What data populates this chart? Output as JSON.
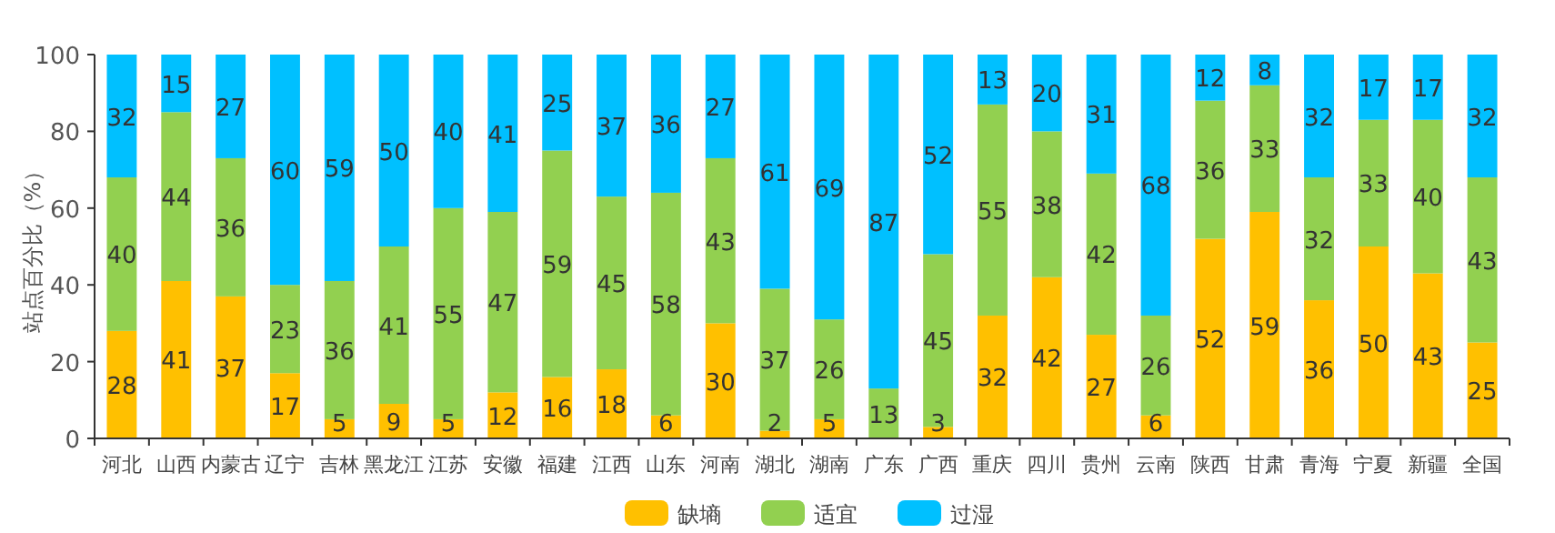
{
  "chart_data": {
    "type": "bar",
    "stacked": true,
    "ylabel": "站点百分比（%）",
    "categories": [
      "河北",
      "山西",
      "内蒙古",
      "辽宁",
      "吉林",
      "黑龙江",
      "江苏",
      "安徽",
      "福建",
      "江西",
      "山东",
      "河南",
      "湖北",
      "湖南",
      "广东",
      "广西",
      "重庆",
      "四川",
      "贵州",
      "云南",
      "陕西",
      "甘肃",
      "青海",
      "宁夏",
      "新疆",
      "全国"
    ],
    "series": [
      {
        "name": "缺墒",
        "color": "#ffc000",
        "values": [
          28,
          41,
          37,
          17,
          5,
          9,
          5,
          12,
          16,
          18,
          6,
          30,
          2,
          5,
          0,
          3,
          32,
          42,
          27,
          6,
          52,
          59,
          36,
          50,
          43,
          25
        ],
        "value_labels": [
          "28",
          "41",
          "37",
          "17",
          "5",
          "9",
          "5",
          "12",
          "16",
          "18",
          "6",
          "30",
          "2",
          "5",
          null,
          "3",
          "32",
          "42",
          "27",
          "6",
          "52",
          "59",
          "36",
          "50",
          "43",
          "25"
        ]
      },
      {
        "name": "适宜",
        "color": "#92d050",
        "values": [
          40,
          44,
          36,
          23,
          36,
          41,
          55,
          47,
          59,
          45,
          58,
          43,
          37,
          26,
          13,
          45,
          55,
          38,
          42,
          26,
          36,
          33,
          32,
          33,
          40,
          43
        ]
      },
      {
        "name": "过湿",
        "color": "#00c0ff",
        "values": [
          32,
          15,
          27,
          60,
          59,
          50,
          40,
          41,
          25,
          37,
          36,
          27,
          61,
          69,
          87,
          52,
          13,
          20,
          31,
          68,
          12,
          8,
          32,
          17,
          17,
          32
        ]
      }
    ],
    "ylim": [
      0,
      100
    ],
    "yticks": [
      0,
      20,
      40,
      60,
      80,
      100
    ],
    "data_labels": true,
    "legend": "bottom",
    "grid": false
  }
}
